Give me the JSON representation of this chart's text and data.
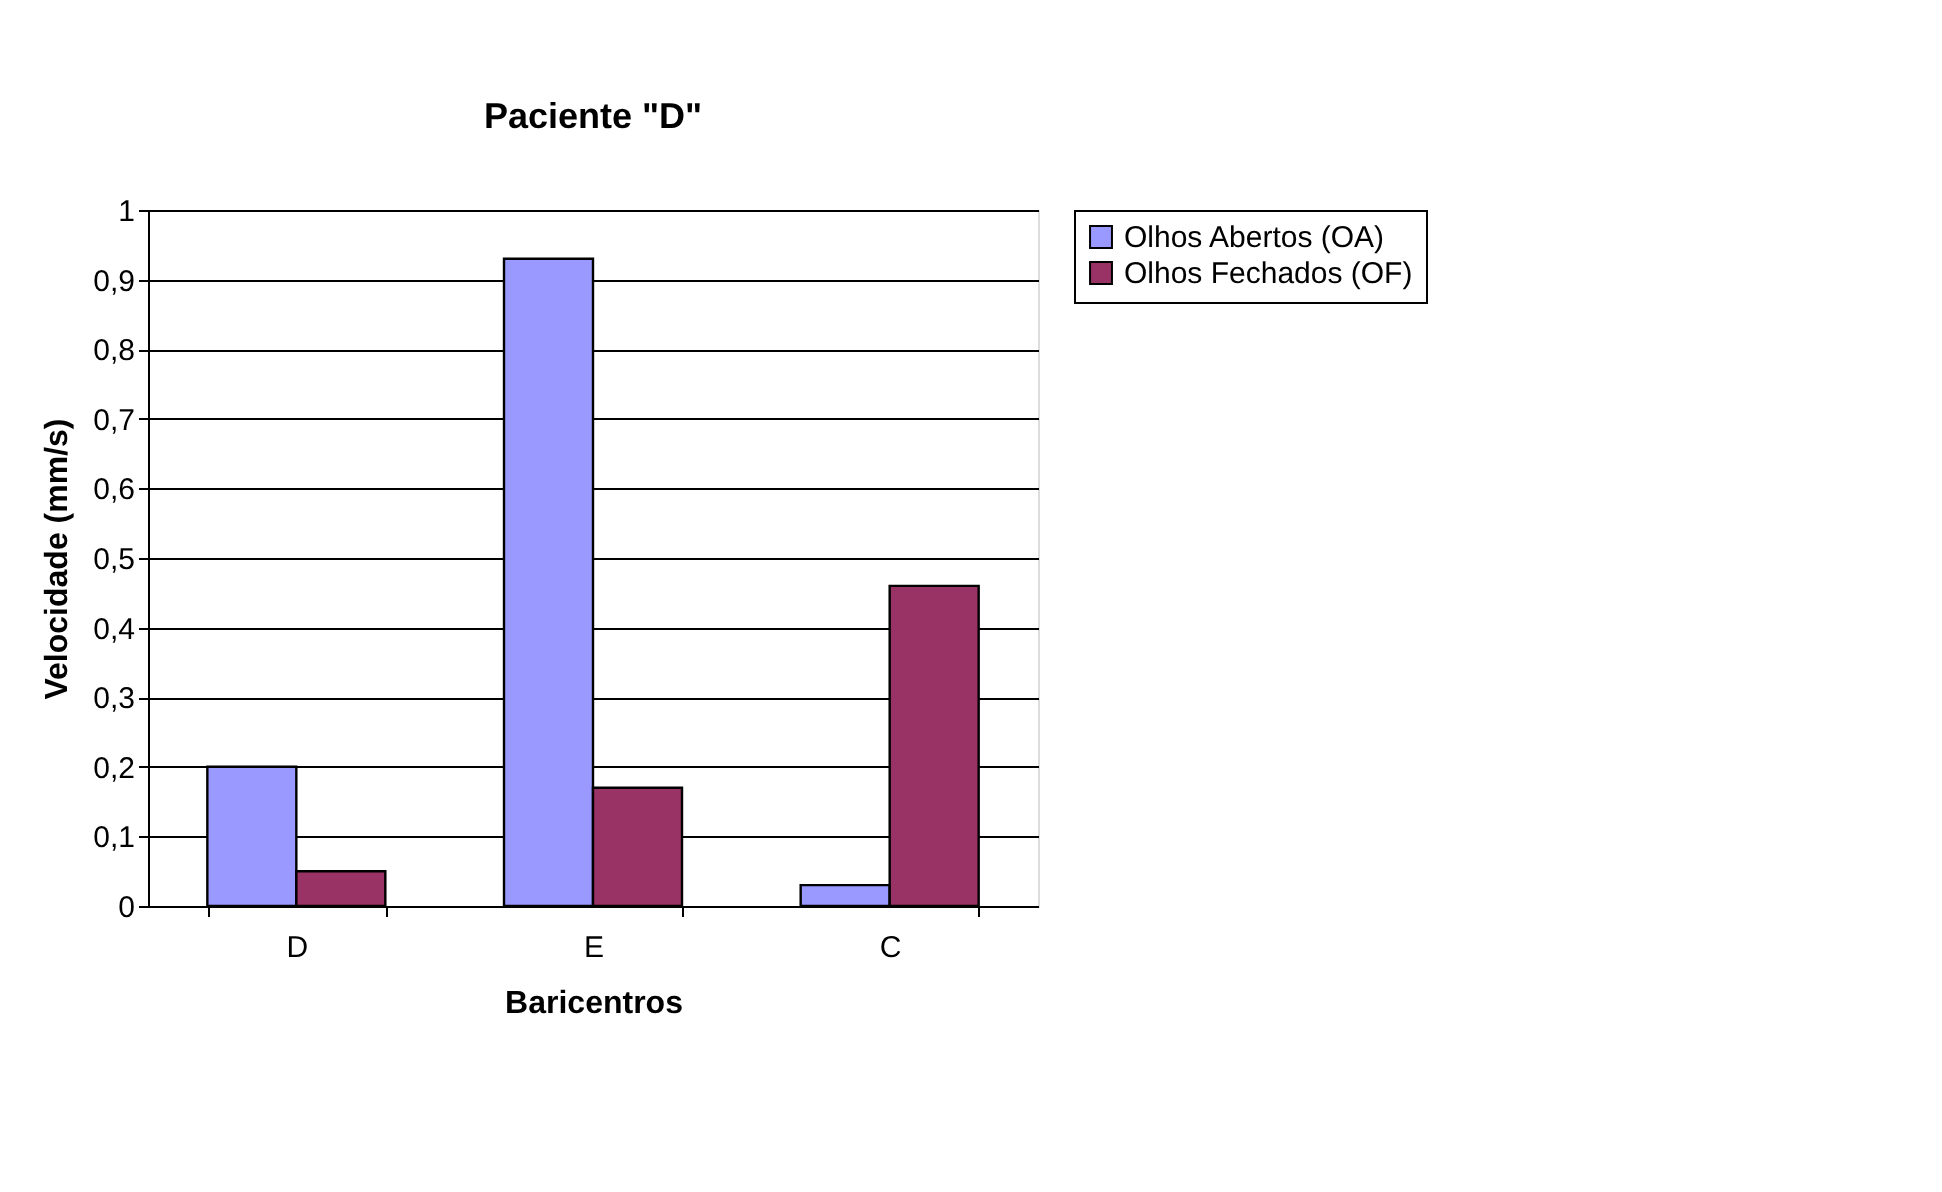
{
  "chart_data": {
    "type": "bar",
    "title": "Paciente \"D\"",
    "xlabel": "Baricentros",
    "ylabel": "Velocidade (mm/s)",
    "categories": [
      "D",
      "E",
      "C"
    ],
    "series": [
      {
        "name": "Olhos Abertos (OA)",
        "color": "#9999ff",
        "values": [
          0.2,
          0.93,
          0.03
        ]
      },
      {
        "name": "Olhos Fechados (OF)",
        "color": "#993366",
        "values": [
          0.05,
          0.17,
          0.46
        ]
      }
    ],
    "ylim": [
      0,
      1
    ],
    "yticks": [
      {
        "value": 0,
        "label": "0"
      },
      {
        "value": 0.1,
        "label": "0,1"
      },
      {
        "value": 0.2,
        "label": "0,2"
      },
      {
        "value": 0.3,
        "label": "0,3"
      },
      {
        "value": 0.4,
        "label": "0,4"
      },
      {
        "value": 0.5,
        "label": "0,5"
      },
      {
        "value": 0.6,
        "label": "0,6"
      },
      {
        "value": 0.7,
        "label": "0,7"
      },
      {
        "value": 0.8,
        "label": "0,8"
      },
      {
        "value": 0.9,
        "label": "0,9"
      },
      {
        "value": 1,
        "label": "1"
      }
    ],
    "grid": "y",
    "legend": "right"
  }
}
